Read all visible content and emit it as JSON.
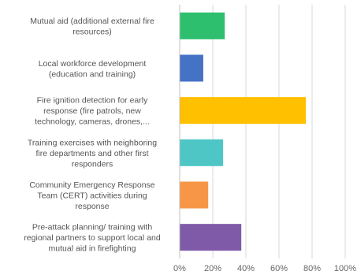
{
  "chart_data": {
    "type": "bar",
    "orientation": "horizontal",
    "categories": [
      [
        "Mutual aid (additional external fire",
        "resources)"
      ],
      [
        "Local workforce development",
        "(education and training)"
      ],
      [
        "Fire ignition detection for early",
        "response (fire patrols, new",
        "technology, cameras, drones,..."
      ],
      [
        "Training exercises with neighboring",
        "fire departments and other first",
        "responders"
      ],
      [
        "Community Emergency Response",
        "Team (CERT) activities during",
        "response"
      ],
      [
        "Pre-attack planning/ training with",
        "regional partners to support local and",
        "mutual aid in firefighting"
      ]
    ],
    "values": [
      27,
      14,
      76,
      26,
      17,
      37
    ],
    "colors": [
      "#2dbf6e",
      "#4472c4",
      "#ffc000",
      "#4fc6c6",
      "#f79646",
      "#7e5aa8"
    ],
    "xlim": [
      0,
      100
    ],
    "xticks": [
      0,
      20,
      40,
      60,
      80,
      100
    ],
    "tick_suffix": "%",
    "grid": true,
    "title": "",
    "xlabel": "",
    "ylabel": ""
  }
}
